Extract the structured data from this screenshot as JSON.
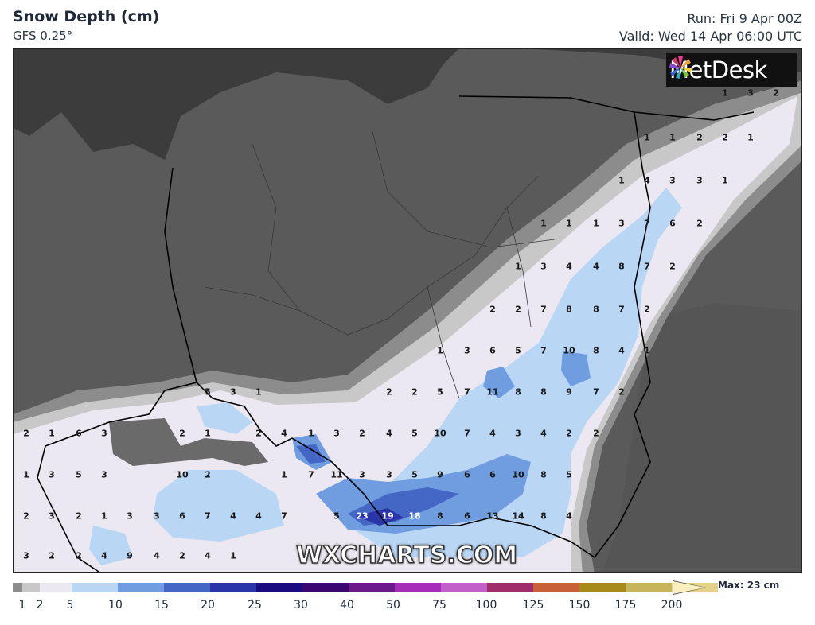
{
  "header": {
    "title": "Snow Depth (cm)",
    "model": "GFS 0.25°",
    "run": "Run: Fri 9 Apr 00Z",
    "valid": "Valid: Wed 14 Apr 06:00 UTC"
  },
  "logo": {
    "text": "MetDesk",
    "icon": "metdesk-star-icon"
  },
  "watermark": "WXCHARTS.COM",
  "legend": {
    "max_label": "Max: 23 cm",
    "ticks": [
      "1",
      "2",
      "5",
      "10",
      "15",
      "20",
      "25",
      "30",
      "40",
      "50",
      "75",
      "100",
      "125",
      "150",
      "175",
      "200"
    ],
    "colors": [
      "#8c8c8c",
      "#c8c8c8",
      "#ece8f2",
      "#b9d6f5",
      "#6f9de0",
      "#4466c4",
      "#2a35a8",
      "#1a0c80",
      "#3a0770",
      "#6a1a8a",
      "#a62db8",
      "#c060c8",
      "#a02e6a",
      "#c8603a",
      "#a88a1a",
      "#c8b45a",
      "#e4d28a",
      "#fdf0c0"
    ]
  },
  "map_colors": {
    "land": "#5a5a5a",
    "sea": "#3c3c3c",
    "snow_1": "#8c8c8c",
    "snow_2": "#c8c8c8",
    "snow_5": "#ece8f2",
    "snow_10": "#b9d6f5",
    "snow_15": "#6f9de0",
    "snow_20": "#4466c4",
    "snow_25": "#2a35a8"
  },
  "point_values": [
    {
      "v": "1"
    },
    {
      "v": "3"
    },
    {
      "v": "2"
    },
    {
      "v": "1"
    },
    {
      "v": "1"
    },
    {
      "v": "2"
    },
    {
      "v": "2"
    },
    {
      "v": "1"
    },
    {
      "v": "1"
    },
    {
      "v": "4"
    },
    {
      "v": "3"
    },
    {
      "v": "3"
    },
    {
      "v": "1"
    },
    {
      "v": "1"
    },
    {
      "v": "1"
    },
    {
      "v": "1"
    },
    {
      "v": "3"
    },
    {
      "v": "7"
    },
    {
      "v": "6"
    },
    {
      "v": "2"
    },
    {
      "v": "1"
    },
    {
      "v": "3"
    },
    {
      "v": "4"
    },
    {
      "v": "4"
    },
    {
      "v": "8"
    },
    {
      "v": "7"
    },
    {
      "v": "2"
    },
    {
      "v": "2"
    },
    {
      "v": "2"
    },
    {
      "v": "7"
    },
    {
      "v": "8"
    },
    {
      "v": "8"
    },
    {
      "v": "7"
    },
    {
      "v": "2"
    },
    {
      "v": "1"
    },
    {
      "v": "3"
    },
    {
      "v": "6"
    },
    {
      "v": "5"
    },
    {
      "v": "7"
    },
    {
      "v": "10"
    },
    {
      "v": "8"
    },
    {
      "v": "4"
    },
    {
      "v": "1"
    },
    {
      "v": "5"
    },
    {
      "v": "3"
    },
    {
      "v": "1"
    },
    {
      "v": "2"
    },
    {
      "v": "2"
    },
    {
      "v": "5"
    },
    {
      "v": "7"
    },
    {
      "v": "11"
    },
    {
      "v": "8"
    },
    {
      "v": "8"
    },
    {
      "v": "9"
    },
    {
      "v": "7"
    },
    {
      "v": "2"
    },
    {
      "v": "2"
    },
    {
      "v": "1"
    },
    {
      "v": "6"
    },
    {
      "v": "3"
    },
    {
      "v": "2"
    },
    {
      "v": "1"
    },
    {
      "v": "2"
    },
    {
      "v": "4"
    },
    {
      "v": "1"
    },
    {
      "v": "3"
    },
    {
      "v": "2"
    },
    {
      "v": "4"
    },
    {
      "v": "5"
    },
    {
      "v": "10"
    },
    {
      "v": "7"
    },
    {
      "v": "4"
    },
    {
      "v": "3"
    },
    {
      "v": "4"
    },
    {
      "v": "2"
    },
    {
      "v": "2"
    },
    {
      "v": "1"
    },
    {
      "v": "3"
    },
    {
      "v": "5"
    },
    {
      "v": "3"
    },
    {
      "v": "10"
    },
    {
      "v": "2"
    },
    {
      "v": "1"
    },
    {
      "v": "7"
    },
    {
      "v": "11"
    },
    {
      "v": "3"
    },
    {
      "v": "3"
    },
    {
      "v": "5"
    },
    {
      "v": "9"
    },
    {
      "v": "6"
    },
    {
      "v": "6"
    },
    {
      "v": "10"
    },
    {
      "v": "8"
    },
    {
      "v": "5"
    },
    {
      "v": "2"
    },
    {
      "v": "3"
    },
    {
      "v": "2"
    },
    {
      "v": "1"
    },
    {
      "v": "3"
    },
    {
      "v": "3"
    },
    {
      "v": "6"
    },
    {
      "v": "7"
    },
    {
      "v": "4"
    },
    {
      "v": "4"
    },
    {
      "v": "7"
    },
    {
      "v": "5"
    },
    {
      "v": "23"
    },
    {
      "v": "19"
    },
    {
      "v": "18"
    },
    {
      "v": "8"
    },
    {
      "v": "6"
    },
    {
      "v": "13"
    },
    {
      "v": "14"
    },
    {
      "v": "8"
    },
    {
      "v": "4"
    },
    {
      "v": "3"
    },
    {
      "v": "2"
    },
    {
      "v": "2"
    },
    {
      "v": "4"
    },
    {
      "v": "9"
    },
    {
      "v": "4"
    },
    {
      "v": "2"
    },
    {
      "v": "4"
    },
    {
      "v": "1"
    }
  ]
}
